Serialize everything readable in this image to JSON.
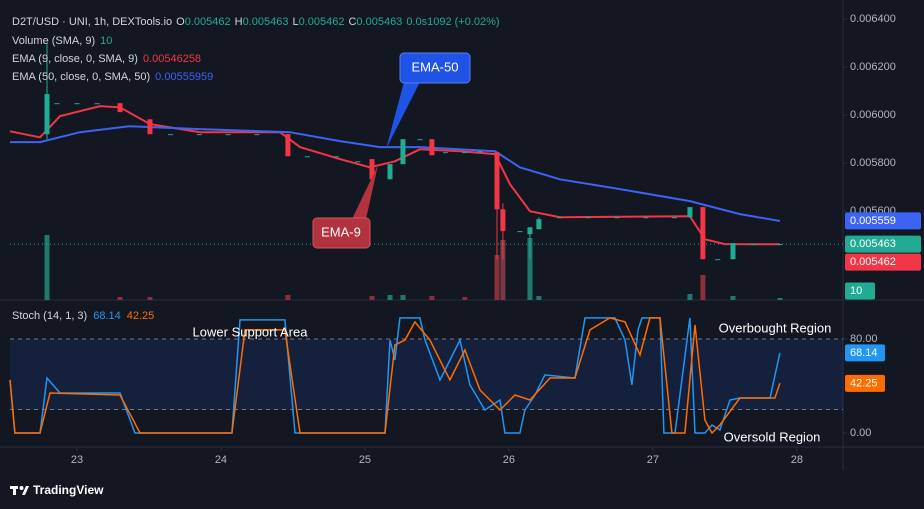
{
  "chart_data": [
    {
      "type": "candlestick",
      "title": "D2T/USD · UNI, 1h, DEXTools.io",
      "ohlc_labels": [
        "O",
        "H",
        "L",
        "C"
      ],
      "ohlc_values": [
        0.005462,
        0.005463,
        0.005462,
        0.005463
      ],
      "change": "0.0s1092 (+0.02%)",
      "xlim": [
        22.535,
        28.32
      ],
      "ylim": [
        0.00523,
        0.00648
      ],
      "yticks": [
        {
          "value": 0.0064,
          "label": "0.006400"
        },
        {
          "value": 0.0062,
          "label": "0.006200"
        },
        {
          "value": 0.006,
          "label": "0.006000"
        },
        {
          "value": 0.0058,
          "label": "0.005800"
        },
        {
          "value": 0.0056,
          "label": "0.005600"
        }
      ],
      "y2lim": [
        0,
        1500
      ],
      "up_color": "#22ab94",
      "down_color": "#f23645",
      "candles": {
        "x": [
          22.792,
          22.861,
          23.0,
          23.14,
          23.299,
          23.507,
          23.65,
          23.85,
          24.05,
          24.25,
          24.465,
          24.6,
          24.8,
          24.95,
          25.049,
          25.174,
          25.264,
          25.382,
          25.465,
          25.56,
          25.694,
          25.8,
          25.917,
          25.958,
          26.076,
          26.146,
          26.208,
          26.35,
          26.55,
          26.75,
          26.95,
          27.15,
          27.257,
          27.347,
          27.45,
          27.556,
          27.7,
          27.882
        ],
        "open": [
          0.005921,
          0.00605,
          0.00605,
          0.00605,
          0.00605,
          0.005983,
          0.005921,
          0.005921,
          0.005921,
          0.005921,
          0.005921,
          0.005829,
          0.005829,
          0.005808,
          0.005817,
          0.005733,
          0.005796,
          0.0059,
          0.0059,
          0.005846,
          0.005846,
          0.00585,
          0.005846,
          0.005608,
          0.005517,
          0.005504,
          0.005525,
          0.005575,
          0.005575,
          0.005575,
          0.005575,
          0.005575,
          0.005575,
          0.005617,
          0.0054,
          0.0054,
          0.005463,
          0.005462
        ],
        "high": [
          0.006296,
          0.00605,
          0.00605,
          0.00605,
          0.00605,
          0.005983,
          0.005921,
          0.005921,
          0.005921,
          0.005921,
          0.005921,
          0.005829,
          0.005829,
          0.005808,
          0.005817,
          0.005796,
          0.0059,
          0.0059,
          0.0059,
          0.005846,
          0.005846,
          0.00585,
          0.005846,
          0.005633,
          0.005517,
          0.005533,
          0.005575,
          0.005575,
          0.005575,
          0.005575,
          0.005575,
          0.005575,
          0.005617,
          0.005617,
          0.0054,
          0.005467,
          0.005463,
          0.005463
        ],
        "low": [
          0.0059,
          0.00605,
          0.00605,
          0.00605,
          0.006013,
          0.005921,
          0.005921,
          0.005921,
          0.005921,
          0.005921,
          0.005829,
          0.005829,
          0.005829,
          0.005808,
          0.005733,
          0.005733,
          0.005796,
          0.0059,
          0.005833,
          0.005846,
          0.005846,
          0.00585,
          0.0054,
          0.0054,
          0.005517,
          0.0054,
          0.005525,
          0.005575,
          0.005575,
          0.005575,
          0.005575,
          0.005575,
          0.005575,
          0.0054,
          0.0054,
          0.0054,
          0.005463,
          0.005462
        ],
        "close": [
          0.006088,
          0.00605,
          0.00605,
          0.00605,
          0.006013,
          0.005921,
          0.005921,
          0.005921,
          0.005921,
          0.005921,
          0.005829,
          0.005829,
          0.005829,
          0.005808,
          0.005733,
          0.005796,
          0.0059,
          0.0059,
          0.005833,
          0.005846,
          0.005846,
          0.00585,
          0.005608,
          0.005517,
          0.005517,
          0.005533,
          0.005567,
          0.005575,
          0.005575,
          0.005575,
          0.005575,
          0.005575,
          0.005617,
          0.0054,
          0.0054,
          0.005467,
          0.005463,
          0.005463
        ]
      },
      "volume": {
        "name": "Volume (SMA, 9)",
        "axis": "y2",
        "x": [
          22.792,
          23.299,
          23.507,
          24.465,
          25.049,
          25.174,
          25.264,
          25.465,
          25.694,
          25.917,
          25.958,
          26.146,
          26.208,
          27.257,
          27.347,
          27.556,
          27.882
        ],
        "values": [
          325,
          15,
          15,
          25,
          20,
          25,
          25,
          20,
          15,
          225,
          300,
          310,
          20,
          30,
          125,
          20,
          10
        ],
        "colors": [
          "#1e7a6c",
          "#8c2f3a",
          "#8c2f3a",
          "#8c2f3a",
          "#8c2f3a",
          "#1e7a6c",
          "#1e7a6c",
          "#8c2f3a",
          "#8c2f3a",
          "#8c2f3a",
          "#7a3a44",
          "#1e7a6c",
          "#1e7a6c",
          "#1e7a6c",
          "#8c2f3a",
          "#1e7a6c",
          "#1e7a6c"
        ]
      },
      "overlays": [
        {
          "name": "EMA (9, close, 0, SMA, 9)",
          "color": "#f23645",
          "last": 0.00546258,
          "axis_label": "0.005462",
          "x": [
            22.535,
            22.743,
            22.882,
            23.16,
            23.299,
            23.507,
            23.854,
            24.41,
            24.549,
            24.826,
            25.035,
            25.208,
            25.382,
            25.66,
            25.903,
            26.007,
            26.146,
            26.354,
            27.257,
            27.361,
            27.5,
            27.882
          ],
          "values": [
            0.005933,
            0.005908,
            0.005996,
            0.006038,
            0.006033,
            0.005963,
            0.005929,
            0.005929,
            0.005867,
            0.005817,
            0.005783,
            0.005808,
            0.005858,
            0.00585,
            0.005838,
            0.005713,
            0.0056,
            0.005575,
            0.005579,
            0.005483,
            0.005463,
            0.005462
          ]
        },
        {
          "name": "EMA (50, close, 0, SMA, 50)",
          "color": "#3d63f5",
          "last": 0.00555959,
          "axis_label": "0.005559",
          "x": [
            22.535,
            22.743,
            23.021,
            23.368,
            23.854,
            24.479,
            24.826,
            25.104,
            25.382,
            25.903,
            26.076,
            26.354,
            26.771,
            27.257,
            27.604,
            27.882
          ],
          "values": [
            0.005888,
            0.005888,
            0.005929,
            0.005954,
            0.005942,
            0.005929,
            0.005892,
            0.005867,
            0.005867,
            0.00585,
            0.005783,
            0.005733,
            0.005692,
            0.005642,
            0.005588,
            0.005559
          ]
        }
      ],
      "annotations": [
        "EMA-50",
        "EMA-9"
      ]
    },
    {
      "type": "line",
      "title": "Stoch (14, 1, 3)",
      "xlim": [
        22.535,
        28.32
      ],
      "xticks": [
        23,
        24,
        25,
        26,
        27,
        28
      ],
      "ylim": [
        -11.9,
        110.6
      ],
      "yticks": [
        {
          "value": 0,
          "label": "0.00"
        },
        {
          "value": 80,
          "label": "80.00"
        }
      ],
      "band": [
        20,
        80
      ],
      "series": [
        {
          "color": "#2196f3",
          "x": [
            22.535,
            22.569,
            22.743,
            22.792,
            22.882,
            23.299,
            23.403,
            24.076,
            24.132,
            24.444,
            24.514,
            25.139,
            25.174,
            25.208,
            25.243,
            25.382,
            25.417,
            25.521,
            25.66,
            25.729,
            25.833,
            25.938,
            25.972,
            26.076,
            26.111,
            26.181,
            26.25,
            26.458,
            26.528,
            26.736,
            26.806,
            26.854,
            26.896,
            26.924,
            27.049,
            27.076,
            27.153,
            27.257,
            27.292,
            27.361,
            27.41,
            27.465,
            27.535,
            27.604,
            27.813,
            27.882
          ],
          "values": [
            45.1,
            0,
            0,
            46.8,
            34,
            34,
            0,
            0,
            96.2,
            96.2,
            0,
            0,
            79.1,
            62.1,
            97.9,
            97.9,
            79.1,
            45.1,
            79.1,
            40.9,
            19.6,
            28.1,
            0,
            0,
            19.6,
            32.3,
            49.4,
            46.8,
            97.9,
            97.9,
            79.1,
            40.9,
            87.7,
            97.9,
            97.9,
            0,
            0,
            97.9,
            0,
            0,
            6.8,
            2.6,
            28.1,
            29.8,
            29.8,
            68.14
          ]
        },
        {
          "color": "#ff6d00",
          "x": [
            22.535,
            22.569,
            22.743,
            22.813,
            23.299,
            23.438,
            24.076,
            24.167,
            24.444,
            24.549,
            25.139,
            25.208,
            25.278,
            25.347,
            25.451,
            25.59,
            25.694,
            25.799,
            25.938,
            26.042,
            26.146,
            26.285,
            26.458,
            26.563,
            26.701,
            26.806,
            26.91,
            26.979,
            27.049,
            27.132,
            27.222,
            27.292,
            27.361,
            27.41,
            27.465,
            27.604,
            27.847,
            27.882
          ],
          "values": [
            45.1,
            0,
            0,
            34,
            32.3,
            0,
            0,
            87.7,
            87.7,
            0,
            0,
            74.9,
            79.1,
            94.5,
            79.1,
            45.1,
            70.6,
            36.6,
            19.6,
            32.3,
            28.1,
            46.8,
            46.8,
            87.7,
            97.9,
            94.5,
            66.4,
            97.9,
            97.9,
            0,
            0,
            91.9,
            11.1,
            0,
            6.8,
            29.8,
            29.8,
            42.25
          ]
        }
      ],
      "annotations": [
        "Lower Support Area",
        "Overbought Region",
        "Oversold Region"
      ]
    }
  ],
  "footer": {
    "brand": "TradingView"
  }
}
